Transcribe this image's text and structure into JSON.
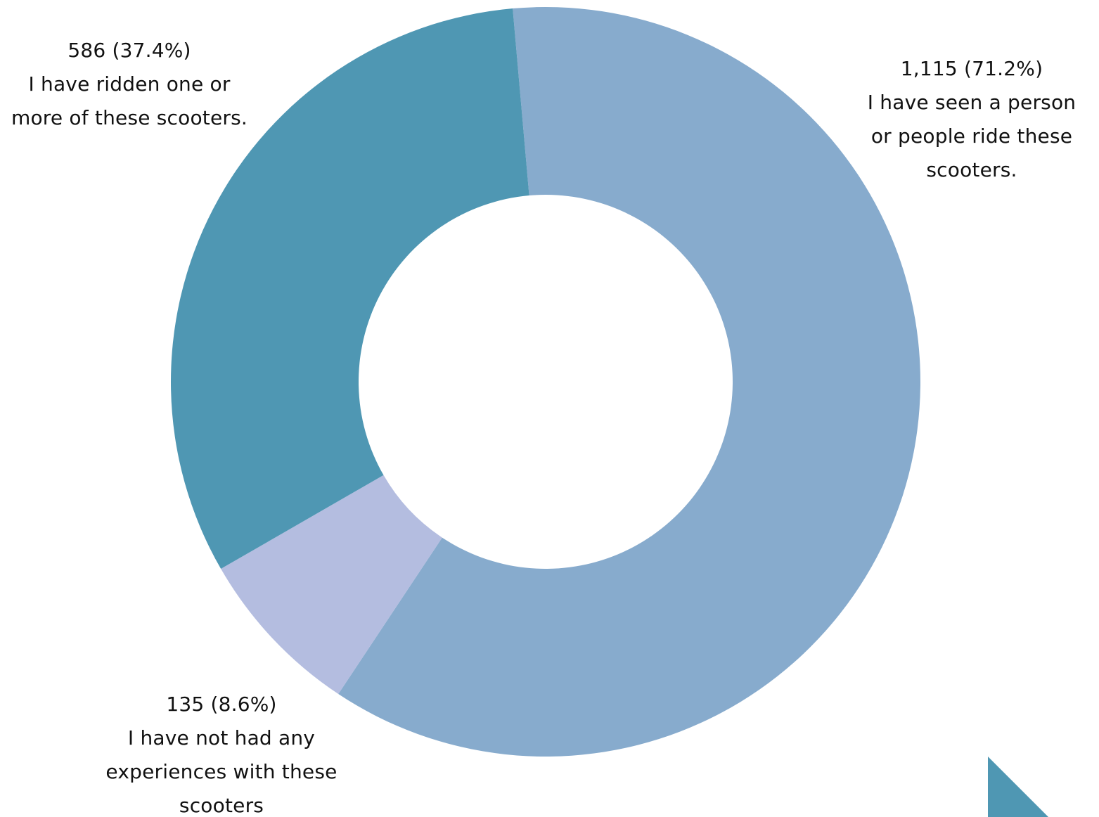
{
  "chart_data": {
    "type": "pie",
    "variant": "donut",
    "slices": [
      {
        "value": 1115,
        "percent_label": "1,115 (71.2%)",
        "label_lines": [
          "I have seen a person",
          "or people ride these",
          "scooters."
        ],
        "color": "#87ABCD"
      },
      {
        "value": 135,
        "percent_label": "135 (8.6%)",
        "label_lines": [
          "I have not had any",
          "experiences with these",
          "scooters"
        ],
        "color": "#B4BDE0"
      },
      {
        "value": 586,
        "percent_label": "586 (37.4%)",
        "label_lines": [
          "I have ridden one or",
          "more of these scooters."
        ],
        "color": "#4F97B3"
      }
    ],
    "legend": "none"
  },
  "decor": {
    "corner_shape_color": "#4F97B3"
  }
}
